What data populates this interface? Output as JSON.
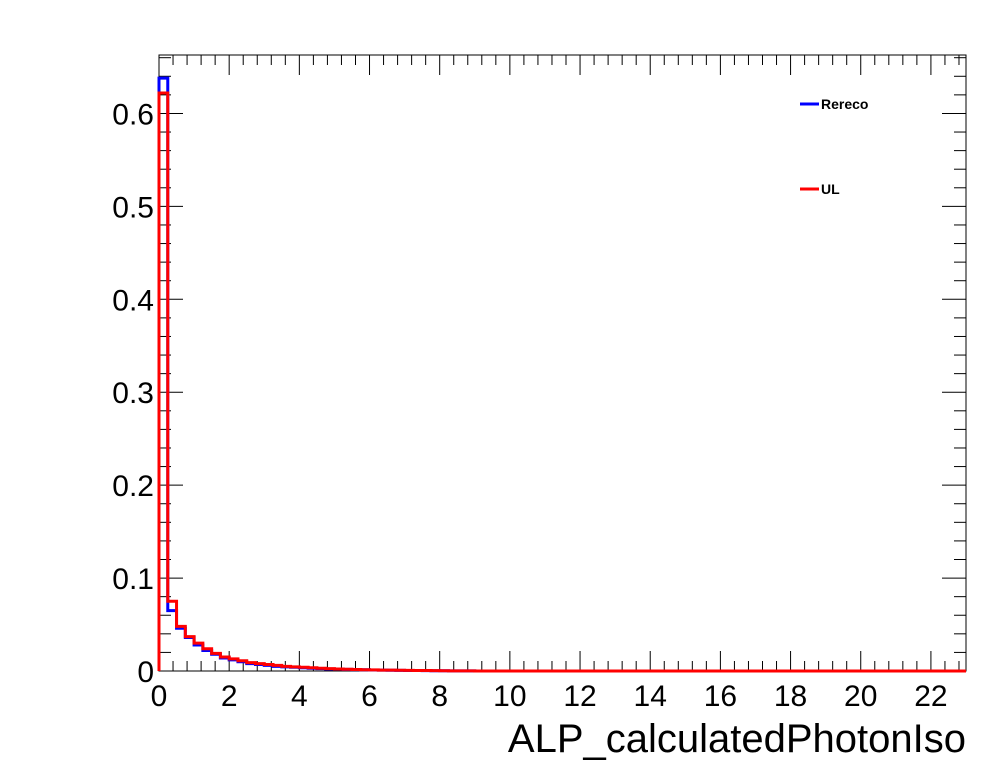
{
  "chart_data": {
    "type": "line",
    "style": "step-histogram",
    "xlabel": "ALP_calculatedPhotonIso",
    "ylabel": "",
    "xlim": [
      0,
      23
    ],
    "ylim": [
      0,
      0.6629
    ],
    "xticks": [
      0,
      2,
      4,
      6,
      8,
      10,
      12,
      14,
      16,
      18,
      20,
      22
    ],
    "yticks": [
      0,
      0.1,
      0.2,
      0.3,
      0.4,
      0.5,
      0.6
    ],
    "xtick_labels": [
      "0",
      "2",
      "4",
      "6",
      "8",
      "10",
      "12",
      "14",
      "16",
      "18",
      "20",
      "22"
    ],
    "ytick_labels": [
      "0",
      "0.1",
      "0.2",
      "0.3",
      "0.4",
      "0.5",
      "0.6"
    ],
    "bin_width": 0.25,
    "grid": false,
    "legend_position": "top-right",
    "series": [
      {
        "name": "Rereco",
        "color": "#0000ff",
        "values": [
          0.638,
          0.065,
          0.046,
          0.036,
          0.028,
          0.022,
          0.018,
          0.014,
          0.012,
          0.01,
          0.008,
          0.007,
          0.006,
          0.005,
          0.0045,
          0.004,
          0.0035,
          0.003,
          0.0026,
          0.0022,
          0.002,
          0.0017,
          0.0015,
          0.0013,
          0.0011,
          0.001,
          0.0008,
          0.0007,
          0.0006,
          0.0005,
          0.0004,
          0.0003,
          0.0003,
          0.0002,
          0.0002,
          0.0001
        ]
      },
      {
        "name": "UL",
        "color": "#ff0000",
        "values": [
          0.622,
          0.075,
          0.048,
          0.037,
          0.03,
          0.024,
          0.019,
          0.015,
          0.013,
          0.011,
          0.009,
          0.008,
          0.007,
          0.006,
          0.005,
          0.0045,
          0.004,
          0.0035,
          0.003,
          0.0026,
          0.0022,
          0.0019,
          0.0016,
          0.0014,
          0.0012,
          0.001,
          0.0009,
          0.0008,
          0.0007,
          0.0006,
          0.0005,
          0.0004,
          0.0003,
          0.0002,
          0.0002,
          0.0001
        ]
      }
    ]
  }
}
